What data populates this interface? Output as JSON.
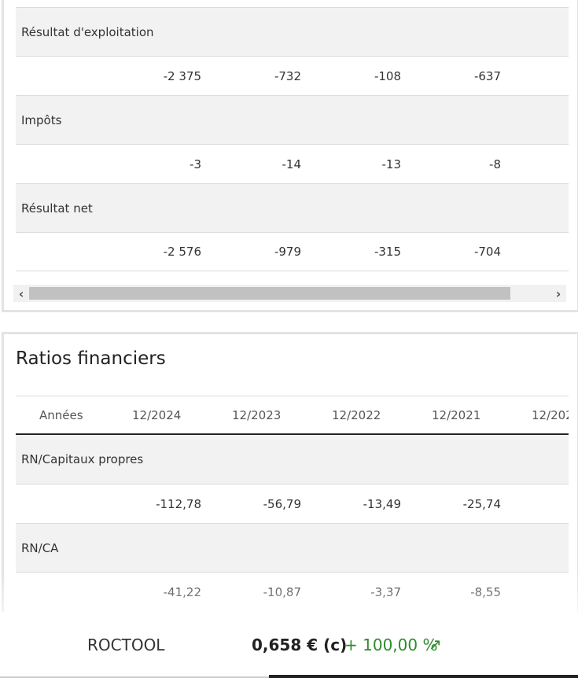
{
  "income_table": {
    "rows": [
      {
        "label": "Résultat d'exploitation",
        "values": [
          "-2 375",
          "-732",
          "-108",
          "-637",
          "-"
        ]
      },
      {
        "label": "Impôts",
        "values": [
          "-3",
          "-14",
          "-13",
          "-8",
          ""
        ]
      },
      {
        "label": "Résultat net",
        "values": [
          "-2 576",
          "-979",
          "-315",
          "-704",
          "-"
        ]
      }
    ]
  },
  "scrollbar": {
    "left_icon": "chevron-left-icon",
    "right_icon": "chevron-right-icon",
    "left_glyph": "‹",
    "right_glyph": "›"
  },
  "ratios": {
    "title": "Ratios financiers",
    "header": {
      "label": "Années",
      "years": [
        "12/2024",
        "12/2023",
        "12/2022",
        "12/2021",
        "12/202"
      ]
    },
    "rows": [
      {
        "label": "RN/Capitaux propres",
        "values": [
          "-112,78",
          "-56,79",
          "-13,49",
          "-25,74",
          "-"
        ]
      },
      {
        "label": "RN/CA",
        "values": [
          "-41,22",
          "-10,87",
          "-3,37",
          "-8,55",
          "-"
        ]
      }
    ]
  },
  "ticker": {
    "name": "ROCTOOL",
    "price": "0,658 €  (c)",
    "change": "+ 100,00 %",
    "trend_icon": "trend-up-arrow-icon",
    "trend_glyph": "↗",
    "colors": {
      "positive": "#2e8b2e"
    }
  }
}
